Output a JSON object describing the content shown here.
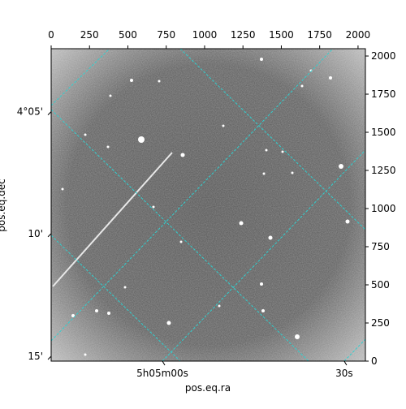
{
  "chart_data": {
    "type": "image",
    "xlabel": "pos.eq.ra",
    "ylabel": "pos.eq.dec",
    "xlim": [
      0,
      2048
    ],
    "ylim": [
      0,
      2048
    ],
    "xticks": [
      0,
      250,
      500,
      750,
      1000,
      1250,
      1500,
      1750,
      2000
    ],
    "yticks": [
      0,
      250,
      500,
      750,
      1000,
      1250,
      1500,
      1750,
      2000
    ],
    "world_xticks": [
      {
        "value": 725,
        "label": "5h05m00s"
      },
      {
        "value": 1910,
        "label": "30s"
      }
    ],
    "world_yticks": [
      {
        "value": 1635,
        "label": "4°05'"
      },
      {
        "value": 836,
        "label": "10'"
      },
      {
        "value": 32,
        "label": "15'"
      }
    ],
    "grid_color": "#2fd0d0"
  }
}
